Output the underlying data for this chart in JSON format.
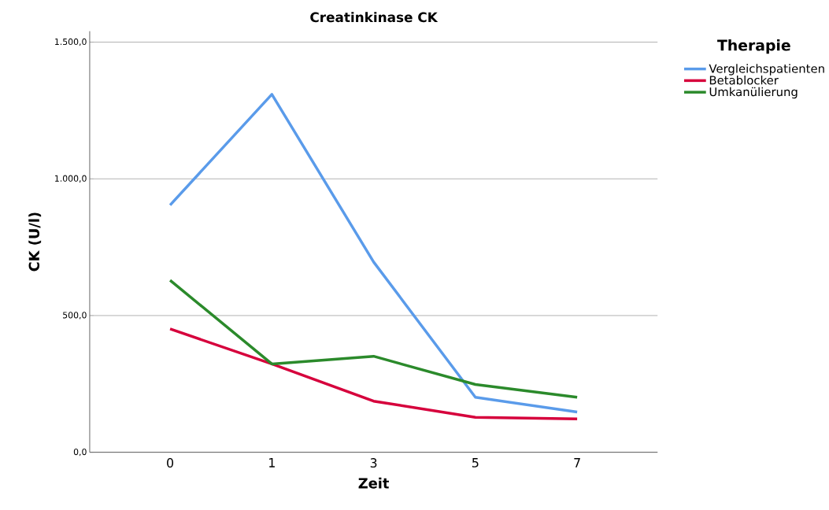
{
  "chart_data": {
    "type": "line",
    "title": "Creatinkinase CK",
    "xlabel": "Zeit",
    "ylabel": "CK (U/l)",
    "legend_title": "Therapie",
    "categories": [
      "0",
      "1",
      "3",
      "5",
      "7"
    ],
    "series": [
      {
        "name": "Vergleichspatienten",
        "color": "#5a9bea",
        "values": [
          904,
          1309,
          696,
          201,
          147
        ]
      },
      {
        "name": "Betablocker",
        "color": "#d6003c",
        "values": [
          451,
          323,
          187,
          128,
          122
        ]
      },
      {
        "name": "Umkanülierung",
        "color": "#2b8a2b",
        "values": [
          629,
          323,
          351,
          248,
          201
        ]
      }
    ],
    "ylim": [
      0,
      1540
    ],
    "yticks": [
      {
        "value": 0,
        "label": "0,0"
      },
      {
        "value": 500,
        "label": "500,0"
      },
      {
        "value": 1000,
        "label": "1.000,0"
      },
      {
        "value": 1500,
        "label": "1.500,0"
      }
    ],
    "grid": "y",
    "legend": "top right",
    "marker": "none",
    "line_style": "solid"
  }
}
